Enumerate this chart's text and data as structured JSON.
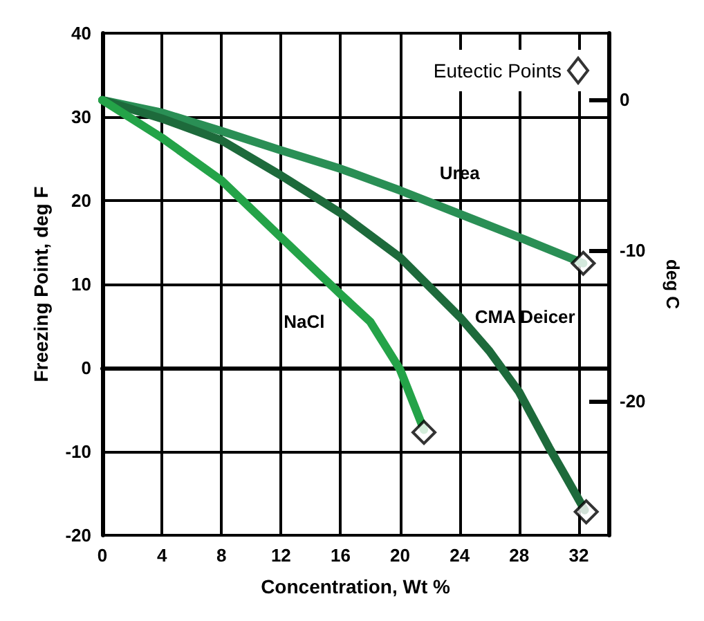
{
  "chart_data": {
    "type": "line",
    "xlabel": "Concentration, Wt %",
    "ylabel": "Freezing Point, deg F",
    "y2label": "deg C",
    "xlim": [
      0,
      34
    ],
    "xticks": [
      0,
      4,
      8,
      12,
      16,
      20,
      24,
      28,
      32
    ],
    "ylim": [
      -20,
      40
    ],
    "yticks": [
      -20,
      -10,
      0,
      10,
      20,
      30,
      40
    ],
    "y2lim": [
      -28.9,
      4.4
    ],
    "y2ticks": [
      -20,
      -10,
      0
    ],
    "grid": true,
    "legend": "top right",
    "marker": "none",
    "line_style": "solid",
    "series": [
      {
        "name": "Urea",
        "color": "#2a8f55",
        "x": [
          0,
          4,
          8,
          12,
          16,
          20,
          24,
          28,
          32.3
        ],
        "values": [
          32,
          30.5,
          28.3,
          26,
          23.8,
          21.2,
          18.4,
          15.6,
          12.5
        ]
      },
      {
        "name": "CMA Deicer",
        "color": "#1d6a3b",
        "x": [
          0,
          4,
          8,
          12,
          16,
          20,
          24,
          26,
          28,
          30,
          31,
          32.4
        ],
        "values": [
          32,
          29.8,
          27.2,
          23,
          18.5,
          13.2,
          6.1,
          2,
          -2.9,
          -9.5,
          -12.6,
          -17
        ]
      },
      {
        "name": "NaCl",
        "color": "#24a348",
        "x": [
          0,
          4,
          8,
          12,
          16,
          18,
          20,
          21.6
        ],
        "values": [
          32,
          27.5,
          22.4,
          15.6,
          8.8,
          5.5,
          -0.2,
          -7.4
        ]
      },
      {
        "name": "Eutectic Points",
        "type": "scatter",
        "marker": "diamond",
        "color": "#000000",
        "x": [
          21.6,
          32.3,
          32.5
        ],
        "values": [
          -7.7,
          12.5,
          -17.2
        ]
      }
    ]
  }
}
